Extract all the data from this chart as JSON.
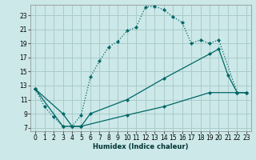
{
  "xlabel": "Humidex (Indice chaleur)",
  "bg_color": "#cce8e8",
  "grid_color": "#aacccc",
  "line_color": "#006666",
  "xlim": [
    -0.5,
    23.5
  ],
  "ylim": [
    6.5,
    24.5
  ],
  "xticks": [
    0,
    1,
    2,
    3,
    4,
    5,
    6,
    7,
    8,
    9,
    10,
    11,
    12,
    13,
    14,
    15,
    16,
    17,
    18,
    19,
    20,
    21,
    22,
    23
  ],
  "yticks": [
    7,
    9,
    11,
    13,
    15,
    17,
    19,
    21,
    23
  ],
  "s1x": [
    0,
    1,
    2,
    3,
    4,
    5,
    6,
    7,
    8,
    9,
    10,
    11,
    12,
    13,
    14,
    15,
    16,
    17,
    18,
    19,
    20,
    22,
    23
  ],
  "s1y": [
    12.5,
    10.0,
    8.5,
    7.2,
    7.2,
    8.8,
    14.2,
    16.5,
    18.5,
    19.3,
    20.8,
    21.3,
    24.2,
    24.3,
    23.8,
    22.8,
    22.0,
    19.0,
    19.5,
    19.0,
    19.5,
    12.0,
    12.0
  ],
  "s2x": [
    0,
    3,
    4,
    5,
    6,
    10,
    14,
    19,
    20,
    21,
    22,
    23
  ],
  "s2y": [
    12.5,
    9.0,
    7.2,
    7.2,
    9.0,
    11.0,
    14.0,
    17.5,
    18.2,
    14.5,
    12.0,
    12.0
  ],
  "s3x": [
    0,
    3,
    4,
    5,
    10,
    14,
    19,
    22,
    23
  ],
  "s3y": [
    12.5,
    7.2,
    7.2,
    7.2,
    8.8,
    10.0,
    12.0,
    12.0,
    12.0
  ]
}
